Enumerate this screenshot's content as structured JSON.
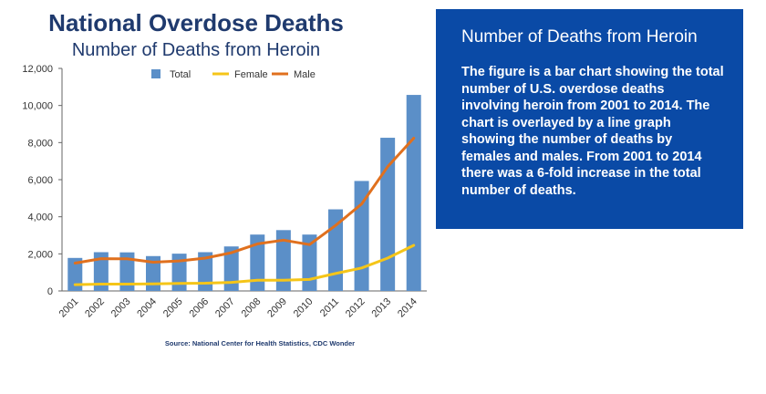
{
  "info": {
    "heading": "Number of Deaths from Heroin",
    "body": "The figure is a bar chart showing the total number of U.S. overdose deaths involving heroin from 2001 to 2014. The chart is overlayed by a line graph showing the number of deaths by females and males. From 2001 to 2014 there was a 6-fold increase in the total number of deaths."
  },
  "chart_data": {
    "type": "bar",
    "title": "National Overdose Deaths",
    "subtitle": "Number of Deaths from Heroin",
    "source": "Source: National Center for Health Statistics, CDC Wonder",
    "categories": [
      "2001",
      "2002",
      "2003",
      "2004",
      "2005",
      "2006",
      "2007",
      "2008",
      "2009",
      "2010",
      "2011",
      "2012",
      "2013",
      "2014"
    ],
    "ylim": [
      0,
      12000
    ],
    "yticks": [
      "0",
      "2,000",
      "4,000",
      "6,000",
      "8,000",
      "10,000",
      "12,000"
    ],
    "ytick_values": [
      0,
      2000,
      4000,
      6000,
      8000,
      10000,
      12000
    ],
    "legend_position": "top",
    "series": [
      {
        "name": "Total",
        "kind": "bar",
        "color": "#5b8fc8",
        "values": [
          1780,
          2090,
          2080,
          1880,
          2010,
          2090,
          2400,
          3040,
          3280,
          3040,
          4400,
          5930,
          8260,
          10570
        ]
      },
      {
        "name": "Female",
        "kind": "line",
        "color": "#f5c518",
        "values": [
          340,
          370,
          370,
          380,
          410,
          420,
          460,
          580,
          580,
          620,
          940,
          1240,
          1770,
          2460
        ]
      },
      {
        "name": "Male",
        "kind": "line",
        "color": "#e0701e",
        "values": [
          1500,
          1740,
          1730,
          1550,
          1620,
          1770,
          2060,
          2540,
          2740,
          2500,
          3530,
          4690,
          6700,
          8240
        ]
      }
    ]
  }
}
